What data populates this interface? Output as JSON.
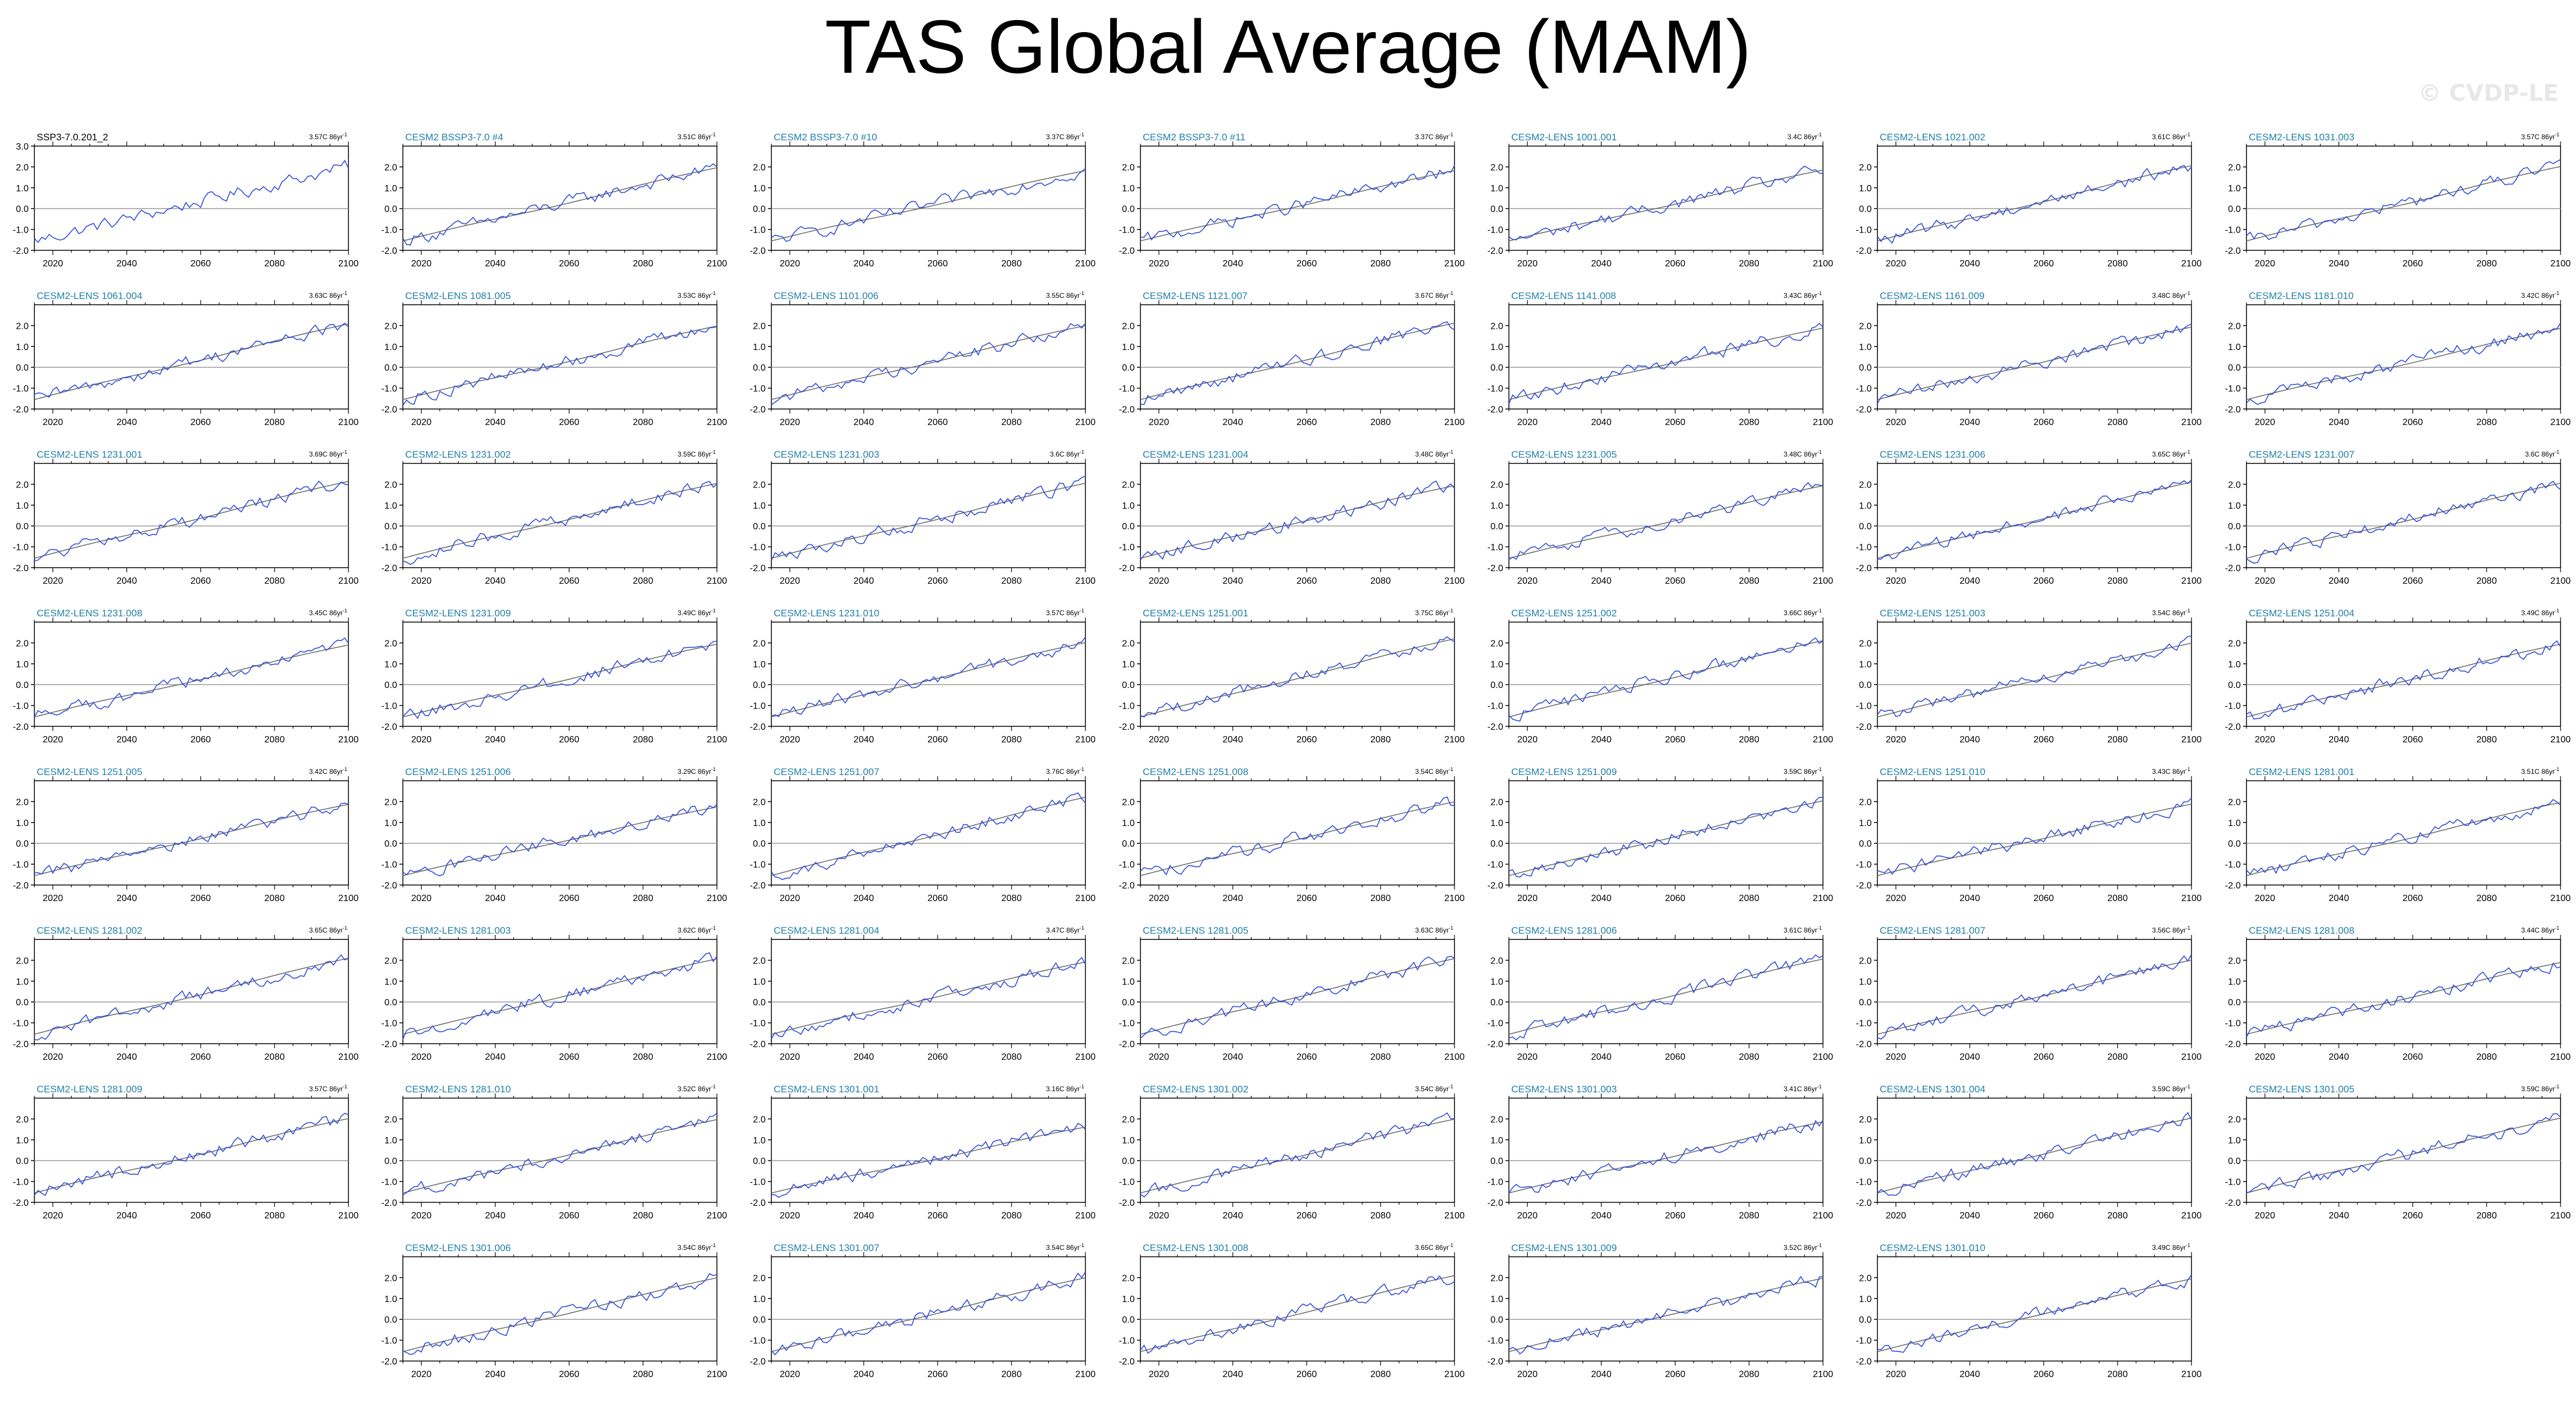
{
  "page": {
    "title": "TAS Global Average (MAM)",
    "watermark": "© CVDP-LE",
    "colors": {
      "ensemble_line": "#2f4bd8",
      "comparison_line": "#6d6d6d",
      "panel_title": "#1f7fa8",
      "observation_title": "#000000",
      "axis": "#000000",
      "zero_line": "#9a9a9a"
    }
  },
  "chart_data": {
    "type": "line",
    "x_ticks": [
      2020,
      2040,
      2060,
      2080,
      2100
    ],
    "xlim": [
      2015,
      2100
    ],
    "y_ticks": [
      "3.0",
      "2.0",
      "1.0",
      "0.0",
      "-1.0",
      "-2.0"
    ],
    "ylim": [
      -2.0,
      3.0
    ],
    "trend_units": "C 86yr",
    "trend_exponent": "-1",
    "panels": [
      {
        "title": "SSP3-7.0.201_2",
        "trend": "3.57",
        "observation": true
      },
      {
        "title": "CESM2 BSSP3-7.0 #4",
        "trend": "3.51"
      },
      {
        "title": "CESM2 BSSP3-7.0 #10",
        "trend": "3.37"
      },
      {
        "title": "CESM2 BSSP3-7.0 #11",
        "trend": "3.37"
      },
      {
        "title": "CESM2-LENS 1001.001",
        "trend": "3.4"
      },
      {
        "title": "CESM2-LENS 1021.002",
        "trend": "3.61"
      },
      {
        "title": "CESM2-LENS 1031.003",
        "trend": "3.57"
      },
      {
        "title": "CESM2-LENS 1061.004",
        "trend": "3.63"
      },
      {
        "title": "CESM2-LENS 1081.005",
        "trend": "3.53"
      },
      {
        "title": "CESM2-LENS 1101.006",
        "trend": "3.55"
      },
      {
        "title": "CESM2-LENS 1121.007",
        "trend": "3.67"
      },
      {
        "title": "CESM2-LENS 1141.008",
        "trend": "3.43"
      },
      {
        "title": "CESM2-LENS 1161.009",
        "trend": "3.48"
      },
      {
        "title": "CESM2-LENS 1181.010",
        "trend": "3.42"
      },
      {
        "title": "CESM2-LENS 1231.001",
        "trend": "3.69"
      },
      {
        "title": "CESM2-LENS 1231.002",
        "trend": "3.59"
      },
      {
        "title": "CESM2-LENS 1231.003",
        "trend": "3.6"
      },
      {
        "title": "CESM2-LENS 1231.004",
        "trend": "3.48"
      },
      {
        "title": "CESM2-LENS 1231.005",
        "trend": "3.48"
      },
      {
        "title": "CESM2-LENS 1231.006",
        "trend": "3.65"
      },
      {
        "title": "CESM2-LENS 1231.007",
        "trend": "3.6"
      },
      {
        "title": "CESM2-LENS 1231.008",
        "trend": "3.45"
      },
      {
        "title": "CESM2-LENS 1231.009",
        "trend": "3.49"
      },
      {
        "title": "CESM2-LENS 1231.010",
        "trend": "3.57"
      },
      {
        "title": "CESM2-LENS 1251.001",
        "trend": "3.75"
      },
      {
        "title": "CESM2-LENS 1251.002",
        "trend": "3.66"
      },
      {
        "title": "CESM2-LENS 1251.003",
        "trend": "3.54"
      },
      {
        "title": "CESM2-LENS 1251.004",
        "trend": "3.49"
      },
      {
        "title": "CESM2-LENS 1251.005",
        "trend": "3.42"
      },
      {
        "title": "CESM2-LENS 1251.006",
        "trend": "3.29"
      },
      {
        "title": "CESM2-LENS 1251.007",
        "trend": "3.76"
      },
      {
        "title": "CESM2-LENS 1251.008",
        "trend": "3.54"
      },
      {
        "title": "CESM2-LENS 1251.009",
        "trend": "3.59"
      },
      {
        "title": "CESM2-LENS 1251.010",
        "trend": "3.43"
      },
      {
        "title": "CESM2-LENS 1281.001",
        "trend": "3.51"
      },
      {
        "title": "CESM2-LENS 1281.002",
        "trend": "3.65"
      },
      {
        "title": "CESM2-LENS 1281.003",
        "trend": "3.62"
      },
      {
        "title": "CESM2-LENS 1281.004",
        "trend": "3.47"
      },
      {
        "title": "CESM2-LENS 1281.005",
        "trend": "3.63"
      },
      {
        "title": "CESM2-LENS 1281.006",
        "trend": "3.61"
      },
      {
        "title": "CESM2-LENS 1281.007",
        "trend": "3.56"
      },
      {
        "title": "CESM2-LENS 1281.008",
        "trend": "3.44"
      },
      {
        "title": "CESM2-LENS 1281.009",
        "trend": "3.57"
      },
      {
        "title": "CESM2-LENS 1281.010",
        "trend": "3.52"
      },
      {
        "title": "CESM2-LENS 1301.001",
        "trend": "3.16"
      },
      {
        "title": "CESM2-LENS 1301.002",
        "trend": "3.54"
      },
      {
        "title": "CESM2-LENS 1301.003",
        "trend": "3.41"
      },
      {
        "title": "CESM2-LENS 1301.004",
        "trend": "3.59"
      },
      {
        "title": "CESM2-LENS 1301.005",
        "trend": "3.59"
      },
      {
        "title": "CESM2-LENS 1301.006",
        "trend": "3.54"
      },
      {
        "title": "CESM2-LENS 1301.007",
        "trend": "3.54"
      },
      {
        "title": "CESM2-LENS 1301.008",
        "trend": "3.65"
      },
      {
        "title": "CESM2-LENS 1301.009",
        "trend": "3.52"
      },
      {
        "title": "CESM2-LENS 1301.010",
        "trend": "3.49"
      }
    ]
  }
}
